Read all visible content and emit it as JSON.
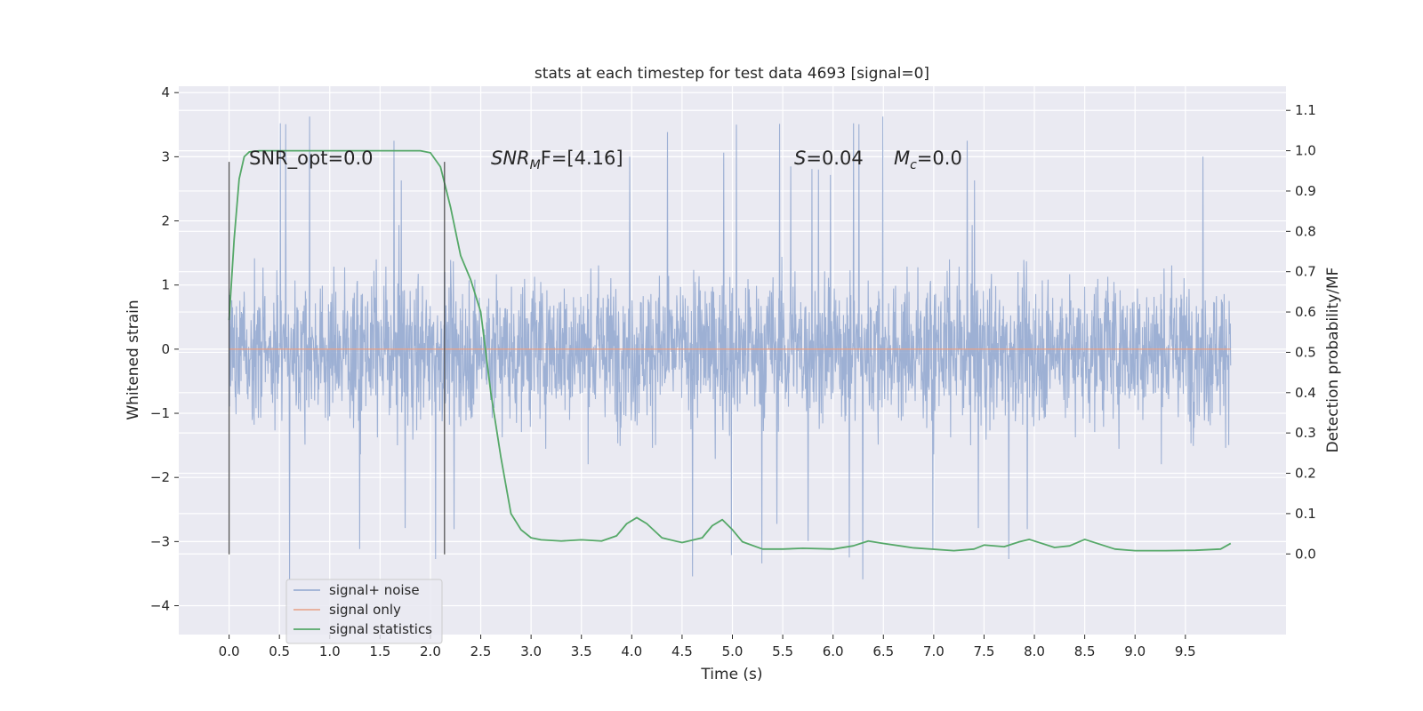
{
  "chart_data": {
    "type": "line",
    "title": "stats at each timestep for test data 4693 [signal=0]",
    "xlabel": "Time (s)",
    "ylabel_left": "Whitened strain",
    "ylabel_right": "Detection probability/MF",
    "xlim": [
      -0.5,
      10.5
    ],
    "ylim_left": [
      -4.45,
      4.1
    ],
    "ylim_right": [
      -0.2,
      1.16
    ],
    "x_ticks": [
      "0.0",
      "0.5",
      "1.0",
      "1.5",
      "2.0",
      "2.5",
      "3.0",
      "3.5",
      "4.0",
      "4.5",
      "5.0",
      "5.5",
      "6.0",
      "6.5",
      "7.0",
      "7.5",
      "8.0",
      "8.5",
      "9.0",
      "9.5"
    ],
    "y_left_ticks": [
      "−4",
      "−3",
      "−2",
      "−1",
      "0",
      "1",
      "2",
      "3",
      "4"
    ],
    "y_right_ticks": [
      "0.0",
      "0.1",
      "0.2",
      "0.3",
      "0.4",
      "0.5",
      "0.6",
      "0.7",
      "0.8",
      "0.9",
      "1.0",
      "1.1"
    ],
    "grid": true,
    "legend_position": "lower-left",
    "annotations": {
      "snr_opt": "SNR_opt=0.0",
      "snr_mf_main": "SNR",
      "snr_mf_sub": "M",
      "snr_mf_rest": "F=[4.16]",
      "s_italic": "S",
      "s_rest": "=0.04",
      "mc_italic": "M",
      "mc_sub": "c",
      "mc_rest": "=0.0"
    },
    "vertical_markers_x": [
      0.0,
      2.14
    ],
    "noise_strain_envelope": {
      "x": [
        0.0,
        9.95
      ],
      "typical_range": [
        -2.0,
        2.2
      ],
      "extreme_peaks": [
        3.75,
        -4.05
      ]
    },
    "series": [
      {
        "name": "signal+ noise",
        "color": "#8fa6cf",
        "axis": "left",
        "description_values": "dense noise, mostly within ±2.2, spikes up to about 3.75 and down to about −4.05"
      },
      {
        "name": "signal only",
        "color": "#e8a085",
        "axis": "left",
        "x": [
          0.0,
          9.95
        ],
        "y": [
          0.0,
          0.0
        ]
      },
      {
        "name": "signal statistics",
        "color": "#55a868",
        "axis": "right",
        "x": [
          0.0,
          0.05,
          0.1,
          0.15,
          0.2,
          0.3,
          0.5,
          1.0,
          1.5,
          1.9,
          2.0,
          2.1,
          2.2,
          2.3,
          2.4,
          2.5,
          2.55,
          2.6,
          2.7,
          2.8,
          2.9,
          3.0,
          3.1,
          3.3,
          3.5,
          3.7,
          3.85,
          3.95,
          4.05,
          4.15,
          4.3,
          4.5,
          4.7,
          4.8,
          4.9,
          5.0,
          5.1,
          5.3,
          5.5,
          5.7,
          6.0,
          6.2,
          6.35,
          6.5,
          6.8,
          7.2,
          7.4,
          7.5,
          7.7,
          7.85,
          7.95,
          8.05,
          8.2,
          8.35,
          8.5,
          8.6,
          8.8,
          9.0,
          9.3,
          9.6,
          9.85,
          9.95
        ],
        "y": [
          0.58,
          0.78,
          0.93,
          0.985,
          0.997,
          1.0,
          1.0,
          1.0,
          1.0,
          1.0,
          0.995,
          0.96,
          0.86,
          0.74,
          0.68,
          0.6,
          0.5,
          0.4,
          0.24,
          0.1,
          0.06,
          0.04,
          0.035,
          0.032,
          0.035,
          0.032,
          0.045,
          0.075,
          0.09,
          0.075,
          0.04,
          0.028,
          0.04,
          0.07,
          0.085,
          0.06,
          0.03,
          0.012,
          0.012,
          0.014,
          0.012,
          0.02,
          0.032,
          0.026,
          0.015,
          0.008,
          0.012,
          0.022,
          0.018,
          0.03,
          0.036,
          0.028,
          0.016,
          0.02,
          0.036,
          0.028,
          0.012,
          0.008,
          0.008,
          0.009,
          0.012,
          0.026
        ]
      }
    ]
  }
}
